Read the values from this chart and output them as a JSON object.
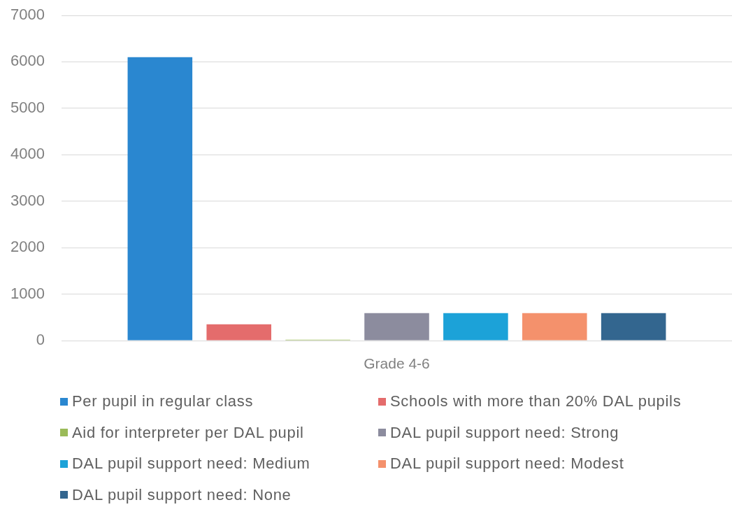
{
  "chart_data": {
    "type": "bar",
    "categories": [
      "Grade 4-6"
    ],
    "series": [
      {
        "name": "Per pupil in regular class",
        "color": "#2a87d0",
        "values": [
          6100
        ]
      },
      {
        "name": "Schools with more than 20% DAL pupils",
        "color": "#e46c6c",
        "values": [
          350
        ]
      },
      {
        "name": "Aid for interpreter per DAL pupil",
        "color": "#9bbb59",
        "values": [
          20
        ]
      },
      {
        "name": "DAL pupil support need: Strong",
        "color": "#8c8c9e",
        "values": [
          590
        ]
      },
      {
        "name": "DAL pupil support need: Medium",
        "color": "#1ca2d8",
        "values": [
          590
        ]
      },
      {
        "name": "DAL pupil support need: Modest",
        "color": "#f4916c",
        "values": [
          590
        ]
      },
      {
        "name": "DAL pupil support need: None",
        "color": "#33668f",
        "values": [
          590
        ]
      }
    ],
    "ylim": [
      0,
      7000
    ],
    "yticks": [
      0,
      1000,
      2000,
      3000,
      4000,
      5000,
      6000,
      7000
    ],
    "grid": "y",
    "legend": "bottom"
  }
}
